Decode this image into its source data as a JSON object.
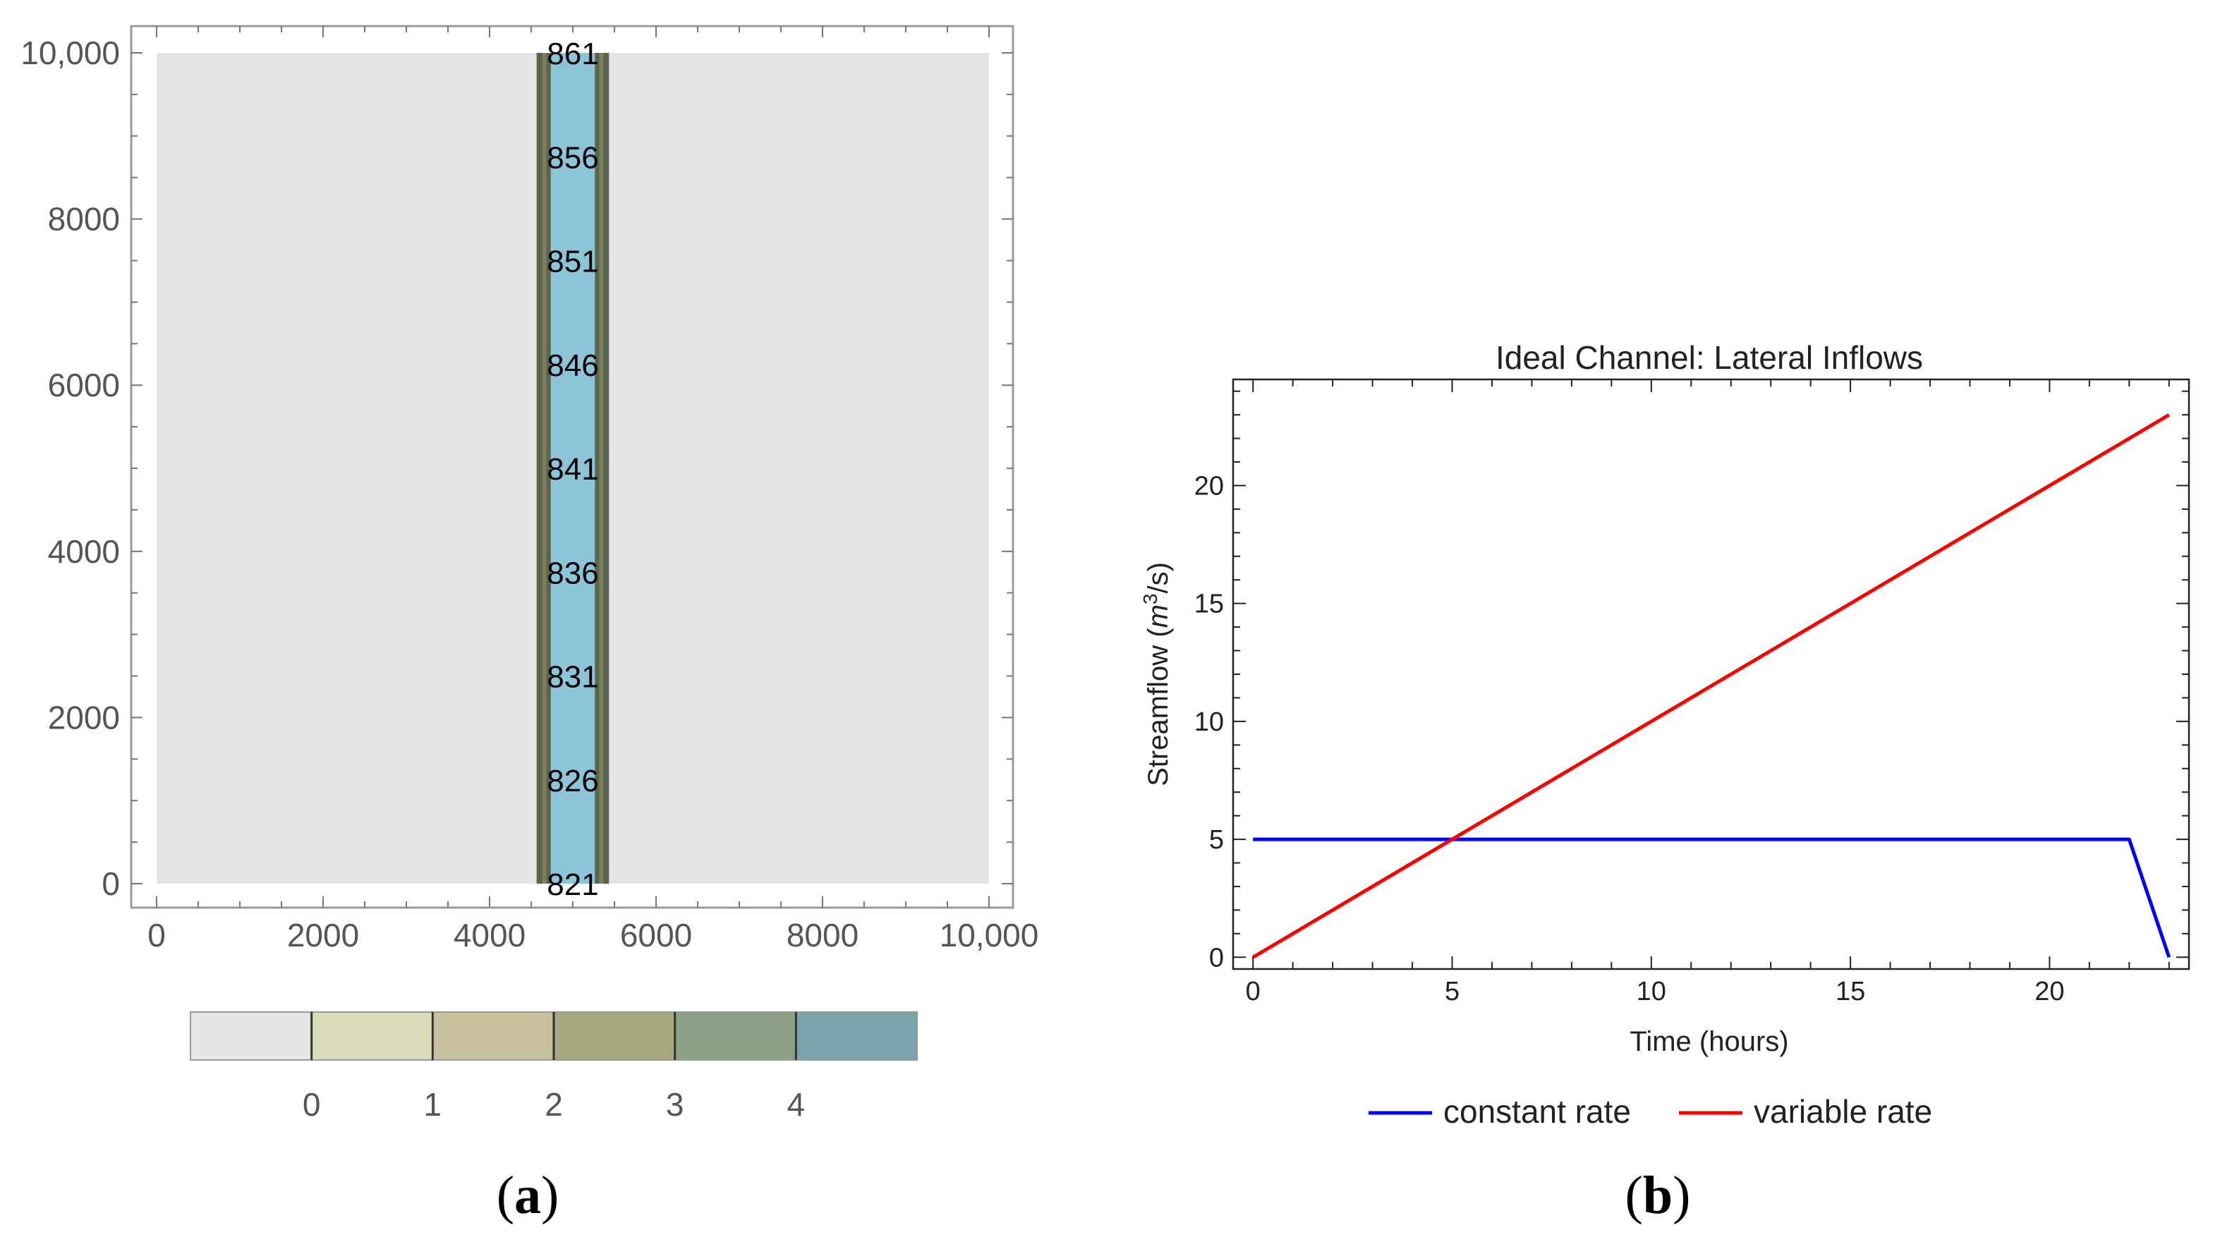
{
  "chart_data": [
    {
      "type": "heatmap",
      "panel_label": "a",
      "title": "",
      "xlabel": "",
      "ylabel": "",
      "xlim": [
        0,
        10000
      ],
      "ylim": [
        0,
        10000
      ],
      "xticks": [
        "0",
        "2000",
        "4000",
        "6000",
        "8000",
        "10,000"
      ],
      "yticks": [
        "0",
        "2000",
        "4000",
        "6000",
        "8000",
        "10,000"
      ],
      "channel": {
        "x_range": [
          4667,
          5333
        ],
        "labels": [
          "821",
          "826",
          "831",
          "836",
          "841",
          "846",
          "851",
          "856",
          "861"
        ],
        "label_values": [
          0,
          1250,
          2500,
          3750,
          5000,
          6250,
          7500,
          8750,
          10000
        ]
      },
      "legend": {
        "type": "colorbar",
        "placement": "bottom",
        "ticks": [
          "0",
          "1",
          "2",
          "3",
          "4"
        ],
        "colors": [
          "#e6e6e6",
          "#dcdcbb",
          "#c6c19a",
          "#a8a87f",
          "#8d9f85",
          "#7ba3ab"
        ]
      },
      "colors": {
        "background": "#e5e5e5",
        "channel": "#8cc4d8",
        "bank": "#5c6450"
      }
    },
    {
      "type": "line",
      "panel_label": "b",
      "title": "Ideal Channel: Lateral Inflows",
      "xlabel": "Time (hours)",
      "ylabel_prefix": "Streamflow (",
      "ylabel_unit": "m",
      "ylabel_exp": "3",
      "ylabel_suffix": "/s)",
      "xlim": [
        -0.5,
        23.5
      ],
      "ylim": [
        -0.5,
        24.5
      ],
      "xticks": [
        0,
        5,
        10,
        15,
        20
      ],
      "yticks": [
        0,
        5,
        10,
        15,
        20
      ],
      "series": [
        {
          "name": "constant rate",
          "color": "#0000ff",
          "x": [
            0,
            22,
            23
          ],
          "y": [
            5,
            5,
            0
          ]
        },
        {
          "name": "variable rate",
          "color": "#ff0000",
          "x": [
            0,
            23
          ],
          "y": [
            0,
            23
          ]
        }
      ],
      "legend_placement": "bottom"
    }
  ]
}
